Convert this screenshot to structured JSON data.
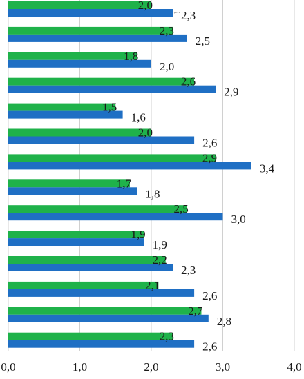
{
  "chart_data": {
    "type": "bar",
    "orientation": "horizontal",
    "xlim": [
      0,
      4
    ],
    "x_ticks": [
      "0,0",
      "1,0",
      "2,0",
      "3,0",
      "4,0"
    ],
    "grid": true,
    "series": [
      {
        "color": "#1fb24a",
        "values": [
          2.0,
          2.3,
          1.8,
          2.6,
          1.5,
          2.0,
          2.9,
          1.7,
          2.5,
          1.9,
          2.2,
          2.1,
          2.7,
          2.3
        ],
        "labels": [
          "2,0",
          "2,3",
          "1,8",
          "2,6",
          "1,5",
          "2,0",
          "2,9",
          "1,7",
          "2,5",
          "1,9",
          "2,2",
          "2,1",
          "2,7",
          "2,3"
        ]
      },
      {
        "color": "#1f6fc4",
        "values": [
          2.3,
          2.5,
          2.0,
          2.9,
          1.6,
          2.6,
          3.4,
          1.8,
          3.0,
          1.9,
          2.3,
          2.6,
          2.8,
          2.6
        ],
        "labels": [
          "2,3",
          "2,5",
          "2,0",
          "2,9",
          "1,6",
          "2,6",
          "3,4",
          "1,8",
          "3,0",
          "1,9",
          "2,3",
          "2,6",
          "2,8",
          "2,6"
        ]
      }
    ]
  }
}
